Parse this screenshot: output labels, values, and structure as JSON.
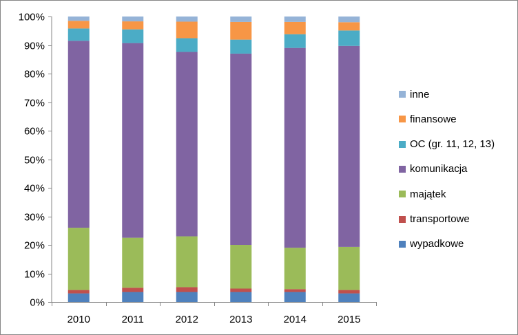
{
  "chart_data": {
    "type": "bar",
    "stacked": true,
    "percent": true,
    "categories": [
      "2010",
      "2011",
      "2012",
      "2013",
      "2014",
      "2015"
    ],
    "ylim": [
      0,
      100
    ],
    "yticks": [
      "0%",
      "10%",
      "20%",
      "30%",
      "40%",
      "50%",
      "60%",
      "70%",
      "80%",
      "90%",
      "100%"
    ],
    "grid": false,
    "legend": "right",
    "series": [
      {
        "name": "wypadkowe",
        "color": "#4F81BD",
        "values": [
          3,
          3.5,
          3.5,
          3.5,
          3.5,
          3
        ]
      },
      {
        "name": "transportowe",
        "color": "#C0504D",
        "values": [
          1.2,
          1.5,
          1.7,
          1.2,
          1,
          1.2
        ]
      },
      {
        "name": "majątek",
        "color": "#9BBB59",
        "values": [
          21.8,
          17.5,
          17.8,
          15.3,
          14.5,
          15.1
        ]
      },
      {
        "name": "komunikacja",
        "color": "#8064A2",
        "values": [
          65.5,
          68.2,
          64.6,
          67,
          70,
          70.4
        ]
      },
      {
        "name": "OC (gr. 11, 12, 13)",
        "color": "#4BACC6",
        "values": [
          4.3,
          4.8,
          4.8,
          4.9,
          4.8,
          5.4
        ]
      },
      {
        "name": "finansowe",
        "color": "#F79646",
        "values": [
          2.7,
          2.8,
          5.8,
          6.2,
          4.3,
          2.9
        ]
      },
      {
        "name": "inne",
        "color": "#95B3D7",
        "values": [
          1.5,
          1.7,
          1.8,
          1.9,
          1.9,
          2
        ]
      }
    ]
  }
}
